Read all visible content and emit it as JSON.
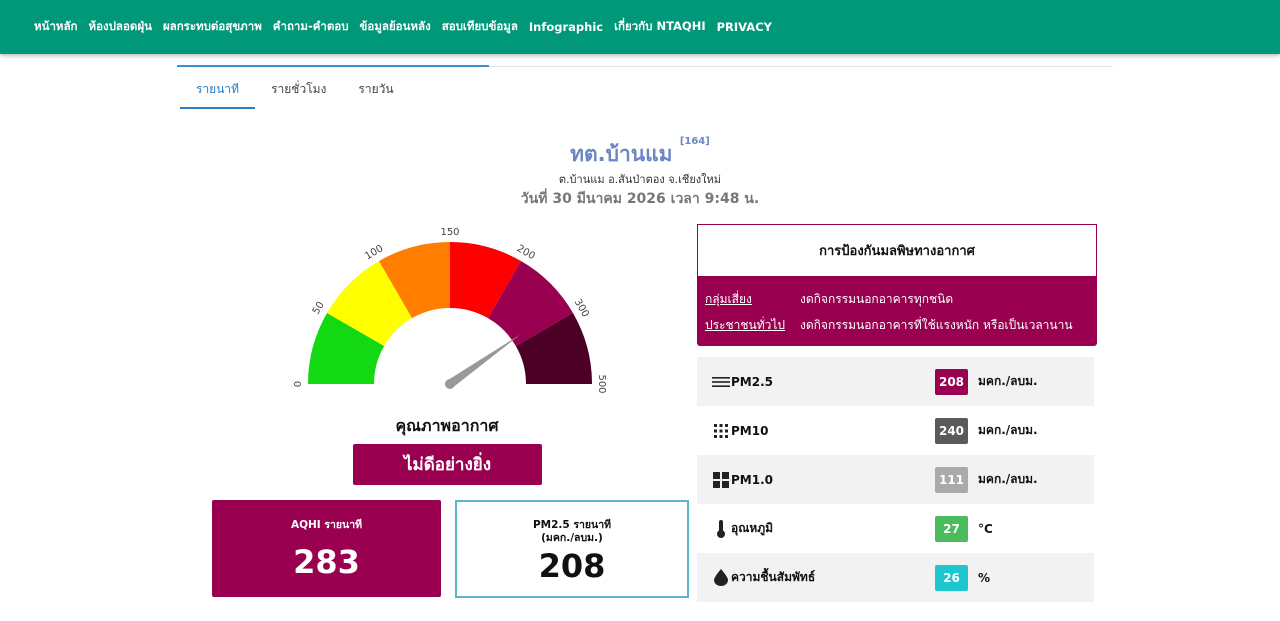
{
  "nav": {
    "items": [
      "หน้าหลัก",
      "ห้องปลอดฝุ่น",
      "ผลกระทบต่อสุขภาพ",
      "คำถาม-คำตอบ",
      "ข้อมูลย้อนหลัง",
      "สอบเทียบข้อมูล",
      "Infographic",
      "เกี่ยวกับ NTAQHI",
      "PRIVACY"
    ]
  },
  "tabs": {
    "minute": "รายนาที",
    "hourly": "รายชั่วโมง",
    "daily": "รายวัน"
  },
  "station": {
    "name": "ทต.บ้านแม",
    "id": "[164]",
    "location": "ต.บ้านแม อ.สันป่าตอง จ.เชียงใหม่",
    "datetime": "วันที่ 30 มีนาคม 2026 เวลา 9:48 น."
  },
  "gauge": {
    "value": 283,
    "min": 0,
    "max": 500,
    "ticks": [
      "0",
      "50",
      "100",
      "150",
      "200",
      "300",
      "500"
    ],
    "bands": [
      {
        "from": 0,
        "to": 50,
        "color": "#12d912"
      },
      {
        "from": 50,
        "to": 100,
        "color": "#ffff00"
      },
      {
        "from": 100,
        "to": 150,
        "color": "#ff7e00"
      },
      {
        "from": 150,
        "to": 200,
        "color": "#ff0000"
      },
      {
        "from": 200,
        "to": 300,
        "color": "#990050"
      },
      {
        "from": 300,
        "to": 500,
        "color": "#4c0026"
      }
    ]
  },
  "quality": {
    "label": "คุณภาพอากาศ",
    "level": "ไม่ดีอย่างยิ่ง",
    "level_color": "#990050"
  },
  "aqhi_box": {
    "title": "AQHI รายนาที",
    "value": "283"
  },
  "pm_box": {
    "title": "PM2.5 รายนาที",
    "unit": "(มคก./ลบม.)",
    "value": "208"
  },
  "protection": {
    "title": "การป้องกันมลพิษทางอากาศ",
    "rows": [
      {
        "group": "กลุ่มเสี่ยง",
        "advice": "งดกิจกรรมนอกอาคารทุกชนิด"
      },
      {
        "group": "ประชาชนทั่วไป",
        "advice": "งดกิจกรรมนอกอาคารที่ใช้แรงหนัก หรือเป็นเวลานาน"
      }
    ]
  },
  "measurements": [
    {
      "name": "PM2.5",
      "value": "208",
      "unit": "มคก./ลบม.",
      "color": "#990050",
      "icon": "lines-icon"
    },
    {
      "name": "PM10",
      "value": "240",
      "unit": "มคก./ลบม.",
      "color": "#5a5a5a",
      "icon": "dots-grid-icon"
    },
    {
      "name": "PM1.0",
      "value": "111",
      "unit": "มคก./ลบม.",
      "color": "#aaaaaa",
      "icon": "squares-grid-icon"
    },
    {
      "name": "อุณหภูมิ",
      "value": "27",
      "unit": "°C",
      "color": "#4cbb5c",
      "icon": "thermometer-icon"
    },
    {
      "name": "ความชื้นสัมพัทธ์",
      "value": "26",
      "unit": "%",
      "color": "#1cc7d0",
      "icon": "droplet-icon"
    }
  ]
}
